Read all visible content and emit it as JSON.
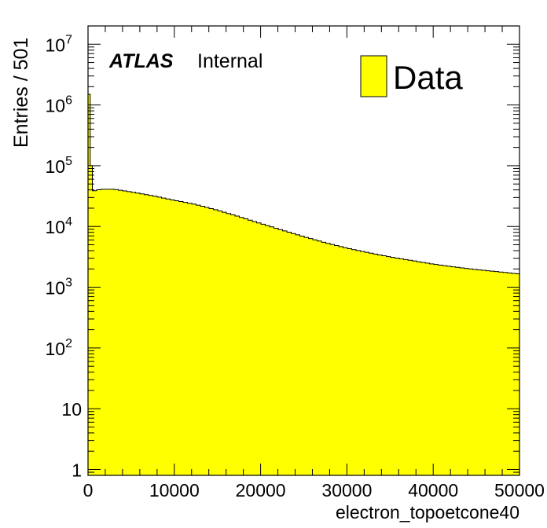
{
  "chart_data": {
    "type": "bar",
    "style": "histogram",
    "fill_color": "#ffff00",
    "line_color": "#000000",
    "xlabel": "electron_topoetcone40",
    "ylabel": "Entries / 501",
    "xlim": [
      0,
      50000
    ],
    "ylim": [
      0.8,
      20000000
    ],
    "yscale": "log",
    "grid": false,
    "legend_position": "top-right",
    "x_ticks": [
      "0",
      "10000",
      "20000",
      "30000",
      "40000",
      "50000"
    ],
    "y_ticks": [
      {
        "value": 1,
        "base": "1",
        "exp": ""
      },
      {
        "value": 10,
        "base": "10",
        "exp": ""
      },
      {
        "value": 100,
        "base": "10",
        "exp": "2"
      },
      {
        "value": 1000,
        "base": "10",
        "exp": "3"
      },
      {
        "value": 10000,
        "base": "10",
        "exp": "4"
      },
      {
        "value": 100000,
        "base": "10",
        "exp": "5"
      },
      {
        "value": 1000000,
        "base": "10",
        "exp": "6"
      },
      {
        "value": 10000000,
        "base": "10",
        "exp": "7"
      }
    ],
    "annotation": {
      "bold": "ATLAS",
      "normal": "Internal"
    },
    "series": [
      {
        "name": "Data",
        "bin_width": 501,
        "special_bins": [
          {
            "x0": 0,
            "x1": 250,
            "value": 1500000
          },
          {
            "x0": 250,
            "x1": 501,
            "value": 100000
          }
        ],
        "curve_start": 501,
        "curve_points": [
          [
            501,
            38000
          ],
          [
            1500,
            41000
          ],
          [
            3000,
            41000
          ],
          [
            5000,
            37000
          ],
          [
            7500,
            32000
          ],
          [
            10000,
            27000
          ],
          [
            12500,
            23000
          ],
          [
            15000,
            18500
          ],
          [
            17500,
            14500
          ],
          [
            20000,
            11200
          ],
          [
            22500,
            8700
          ],
          [
            25000,
            6800
          ],
          [
            27500,
            5400
          ],
          [
            30000,
            4400
          ],
          [
            32500,
            3700
          ],
          [
            35000,
            3150
          ],
          [
            37500,
            2750
          ],
          [
            40000,
            2400
          ],
          [
            42500,
            2150
          ],
          [
            45000,
            1950
          ],
          [
            47500,
            1800
          ],
          [
            50000,
            1650
          ]
        ]
      }
    ]
  }
}
